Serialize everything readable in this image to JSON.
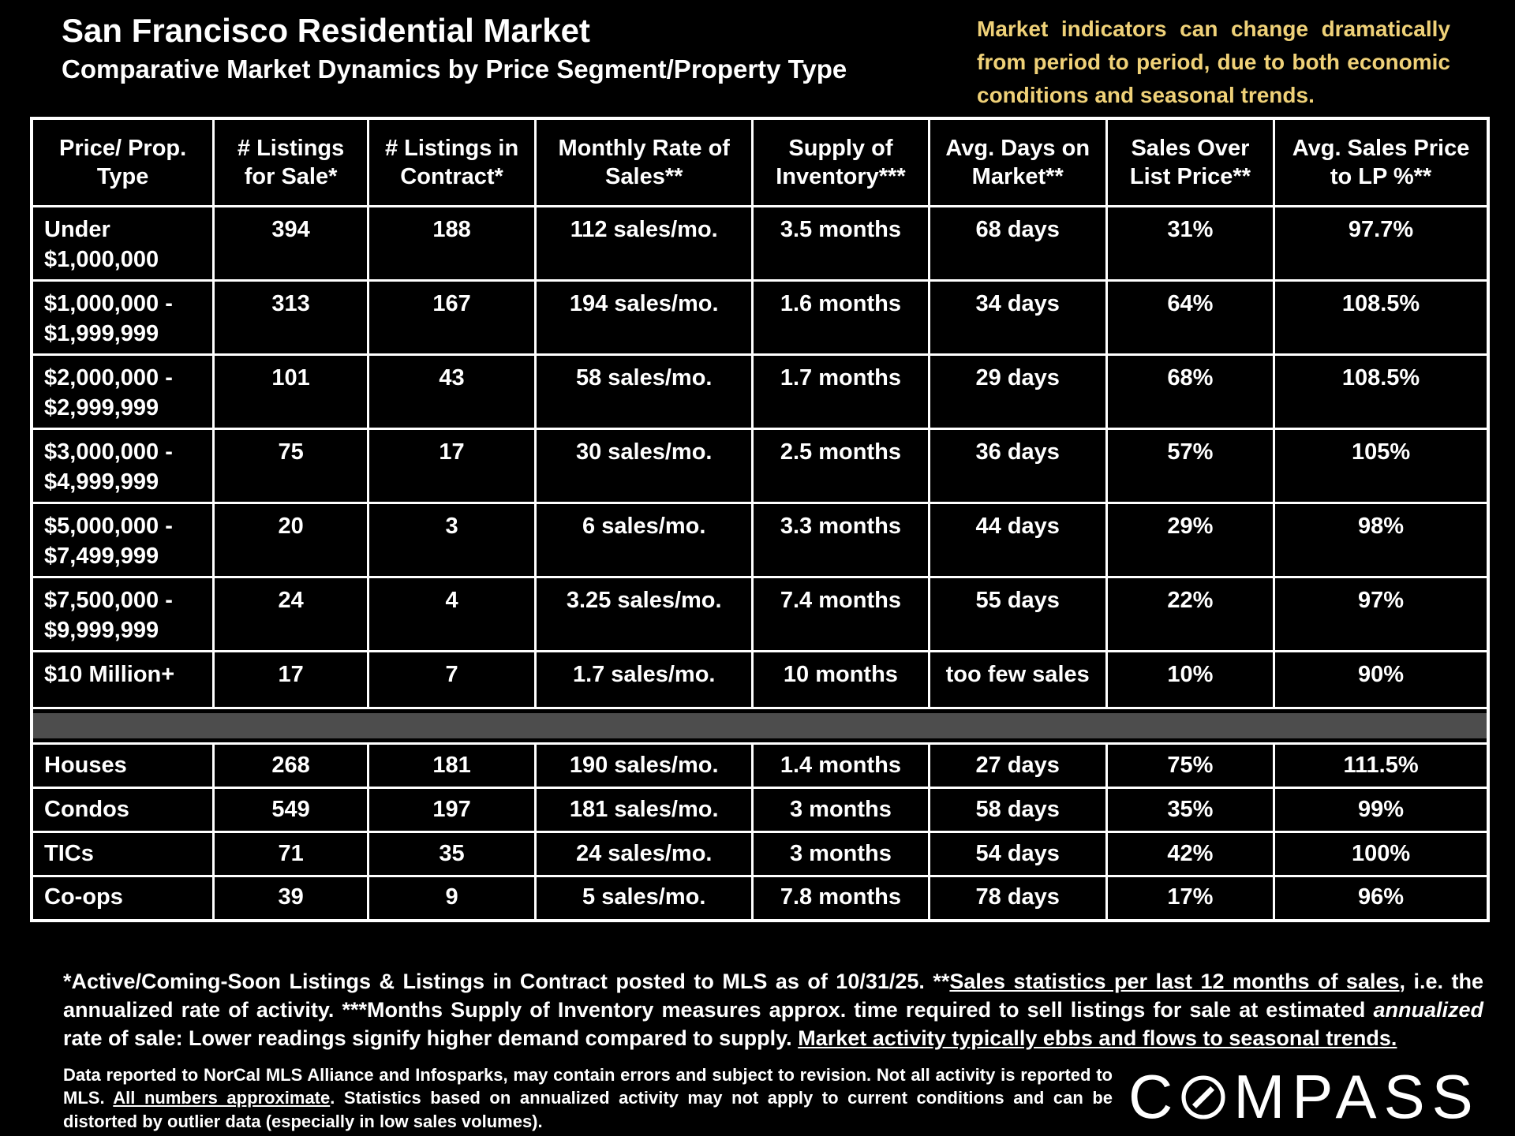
{
  "header": {
    "title": "San Francisco Residential Market",
    "subtitle": "Comparative Market Dynamics by Price Segment/Property Type",
    "note": "Market indicators can change dramatically from period to period, due to both economic conditions and seasonal trends."
  },
  "chart_data": {
    "type": "table",
    "title": "San Francisco Residential Market — Comparative Market Dynamics by Price Segment/Property Type",
    "columns": [
      "Price/ Prop. Type",
      "# Listings for Sale*",
      "# Listings in Contract*",
      "Monthly Rate of Sales**",
      "Supply of Inventory***",
      "Avg. Days on Market**",
      "Sales Over List Price**",
      "Avg. Sales Price to LP %**"
    ],
    "rows": [
      [
        "Under $1,000,000",
        "394",
        "188",
        "112 sales/mo.",
        "3.5 months",
        "68 days",
        "31%",
        "97.7%"
      ],
      [
        "$1,000,000 - $1,999,999",
        "313",
        "167",
        "194 sales/mo.",
        "1.6 months",
        "34 days",
        "64%",
        "108.5%"
      ],
      [
        "$2,000,000 - $2,999,999",
        "101",
        "43",
        "58 sales/mo.",
        "1.7 months",
        "29 days",
        "68%",
        "108.5%"
      ],
      [
        "$3,000,000 - $4,999,999",
        "75",
        "17",
        "30 sales/mo.",
        "2.5 months",
        "36 days",
        "57%",
        "105%"
      ],
      [
        "$5,000,000 - $7,499,999",
        "20",
        "3",
        "6 sales/mo.",
        "3.3 months",
        "44 days",
        "29%",
        "98%"
      ],
      [
        "$7,500,000 - $9,999,999",
        "24",
        "4",
        "3.25 sales/mo.",
        "7.4 months",
        "55 days",
        "22%",
        "97%"
      ],
      [
        "$10 Million+",
        "17",
        "7",
        "1.7 sales/mo.",
        "10 months",
        "too few sales",
        "10%",
        "90%"
      ],
      [
        "Houses",
        "268",
        "181",
        "190 sales/mo.",
        "1.4 months",
        "27 days",
        "75%",
        "111.5%"
      ],
      [
        "Condos",
        "549",
        "197",
        "181 sales/mo.",
        "3 months",
        "58 days",
        "35%",
        "99%"
      ],
      [
        "TICs",
        "71",
        "35",
        "24 sales/mo.",
        "3 months",
        "54 days",
        "42%",
        "100%"
      ],
      [
        "Co-ops",
        "39",
        "9",
        "5 sales/mo.",
        "7.8 months",
        "78 days",
        "17%",
        "96%"
      ]
    ],
    "divider_after_row": 6,
    "section_names": [
      "price_segments",
      "property_types"
    ],
    "legend_position": "none",
    "grid": true
  },
  "footnote_primary": {
    "segments": [
      {
        "text": "*Active/Coming-Soon Listings & Listings in Contract posted to MLS as of 10/31/25.  **"
      },
      {
        "text": "Sales statistics per last 12 months of sales",
        "style": "u"
      },
      {
        "text": ", i.e. the annualized rate of activity.  ***Months Supply of Inventory measures approx. time required to sell listings for sale at estimated "
      },
      {
        "text": "annualized",
        "style": "i"
      },
      {
        "text": " rate of sale:  Lower readings signify higher demand compared to supply. "
      },
      {
        "text": "Market activity typically ebbs and flows to seasonal trends.",
        "style": "u"
      }
    ]
  },
  "footnote_disclaimer": {
    "segments": [
      {
        "text": "Data reported to NorCal MLS Alliance and Infosparks, may contain errors and subject to revision.  Not all activity is reported to MLS. "
      },
      {
        "text": "All numbers approximate",
        "style": "u"
      },
      {
        "text": ". Statistics based on annualized activity may not apply to current conditions and can be distorted by outlier data (especially in low sales volumes)."
      }
    ]
  },
  "logo": {
    "pre": "C",
    "post": "MPASS",
    "full_name": "COMPASS"
  },
  "colors": {
    "background": "#000000",
    "text": "#ffffff",
    "accent_yellow": "#efd178",
    "divider_gray": "#4d4d4d",
    "table_border": "#ffffff"
  }
}
